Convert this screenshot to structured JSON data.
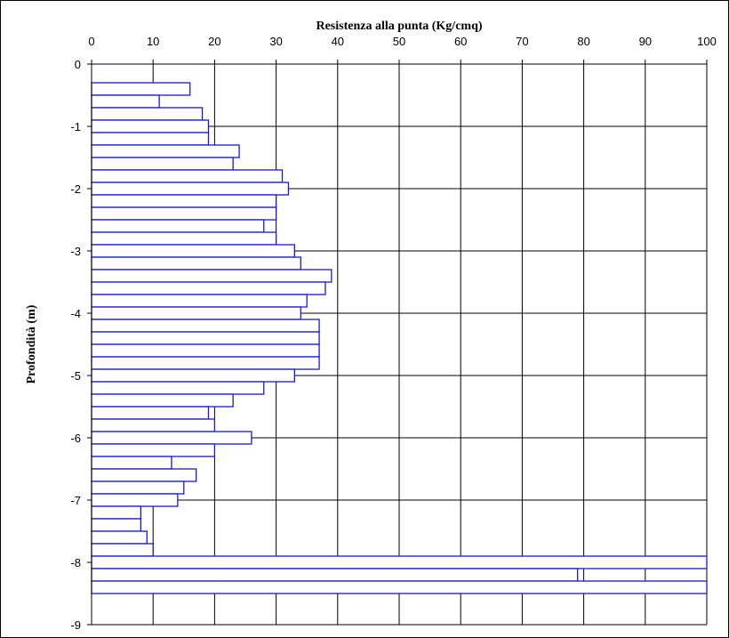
{
  "chart_data": {
    "type": "bar",
    "orientation": "horizontal",
    "x_axis_position": "top",
    "xlabel": "Resistenza alla punta (Kg/cmq)",
    "ylabel": "Profondità (m)",
    "xlim": [
      0,
      100
    ],
    "ylim": [
      -9,
      0
    ],
    "xticks": [
      0,
      10,
      20,
      30,
      40,
      50,
      60,
      70,
      80,
      90,
      100
    ],
    "yticks": [
      0,
      -1,
      -2,
      -3,
      -4,
      -5,
      -6,
      -7,
      -8,
      -9
    ],
    "grid": true,
    "legend": "none",
    "bar_color": "#1a1acc",
    "bar_fill": "#ffffff",
    "bar_step_m": 0.2,
    "depths": [
      -0.4,
      -0.6,
      -0.8,
      -1.0,
      -1.2,
      -1.4,
      -1.6,
      -1.8,
      -2.0,
      -2.2,
      -2.4,
      -2.6,
      -2.8,
      -3.0,
      -3.2,
      -3.4,
      -3.6,
      -3.8,
      -4.0,
      -4.2,
      -4.4,
      -4.6,
      -4.8,
      -5.0,
      -5.2,
      -5.4,
      -5.6,
      -5.8,
      -6.0,
      -6.2,
      -6.4,
      -6.6,
      -6.8,
      -7.0,
      -7.2,
      -7.4,
      -7.6,
      -7.8,
      -8.0,
      -8.2,
      -8.4
    ],
    "values": [
      16,
      11,
      18,
      19,
      19,
      24,
      23,
      31,
      32,
      30,
      30,
      28,
      30,
      33,
      34,
      39,
      38,
      35,
      34,
      37,
      37,
      37,
      37,
      33,
      28,
      23,
      19,
      20,
      26,
      20,
      13,
      17,
      15,
      14,
      8,
      8,
      9,
      10,
      100,
      79,
      100
    ]
  }
}
